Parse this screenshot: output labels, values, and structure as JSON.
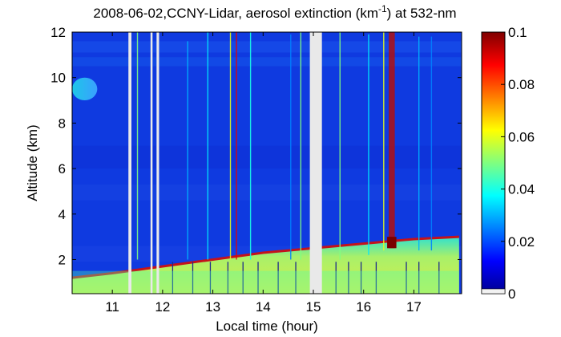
{
  "chart_data": {
    "type": "heatmap",
    "title_main": "2008-06-02,CCNY-Lidar, aerosol extinction (km",
    "title_sup": "-1",
    "title_end": ") at 532-nm",
    "xlabel": "Local time (hour)",
    "ylabel": "Altitude (km)",
    "xlim": [
      10.2,
      17.95
    ],
    "ylim": [
      0.5,
      12
    ],
    "xticks": [
      11,
      12,
      13,
      14,
      15,
      16,
      17
    ],
    "yticks": [
      2,
      4,
      6,
      8,
      10,
      12
    ],
    "colorbar": {
      "range": [
        0,
        0.1
      ],
      "ticks": [
        0,
        0.02,
        0.04,
        0.06,
        0.08,
        0.1
      ],
      "tick_labels": [
        "0",
        "0.02",
        "0.04",
        "0.06",
        "0.08",
        "0.1"
      ],
      "colormap": "jet"
    },
    "data_gaps_hour": [
      [
        11.32,
        11.38
      ],
      [
        11.76,
        11.8
      ],
      [
        11.88,
        11.93
      ],
      [
        14.93,
        15.17
      ]
    ],
    "boundary_layer_top_km": [
      {
        "x": 10.2,
        "y": 1.2
      },
      {
        "x": 11.0,
        "y": 1.4
      },
      {
        "x": 12.0,
        "y": 1.7
      },
      {
        "x": 13.0,
        "y": 2.0
      },
      {
        "x": 14.0,
        "y": 2.3
      },
      {
        "x": 15.0,
        "y": 2.5
      },
      {
        "x": 16.0,
        "y": 2.7
      },
      {
        "x": 17.0,
        "y": 2.9
      },
      {
        "x": 17.9,
        "y": 3.0
      }
    ],
    "features": [
      {
        "kind": "aerosol_layer",
        "x_range": [
          10.2,
          17.9
        ],
        "y_range": [
          0.5,
          1.5
        ],
        "value": 0.045
      },
      {
        "kind": "plume",
        "x_range": [
          10.2,
          10.7
        ],
        "y_range": [
          9.0,
          10.0
        ],
        "value": 0.028
      },
      {
        "kind": "cloud",
        "x_range": [
          16.5,
          16.62
        ],
        "y_range": [
          2.5,
          12
        ],
        "value": 0.1
      }
    ]
  }
}
